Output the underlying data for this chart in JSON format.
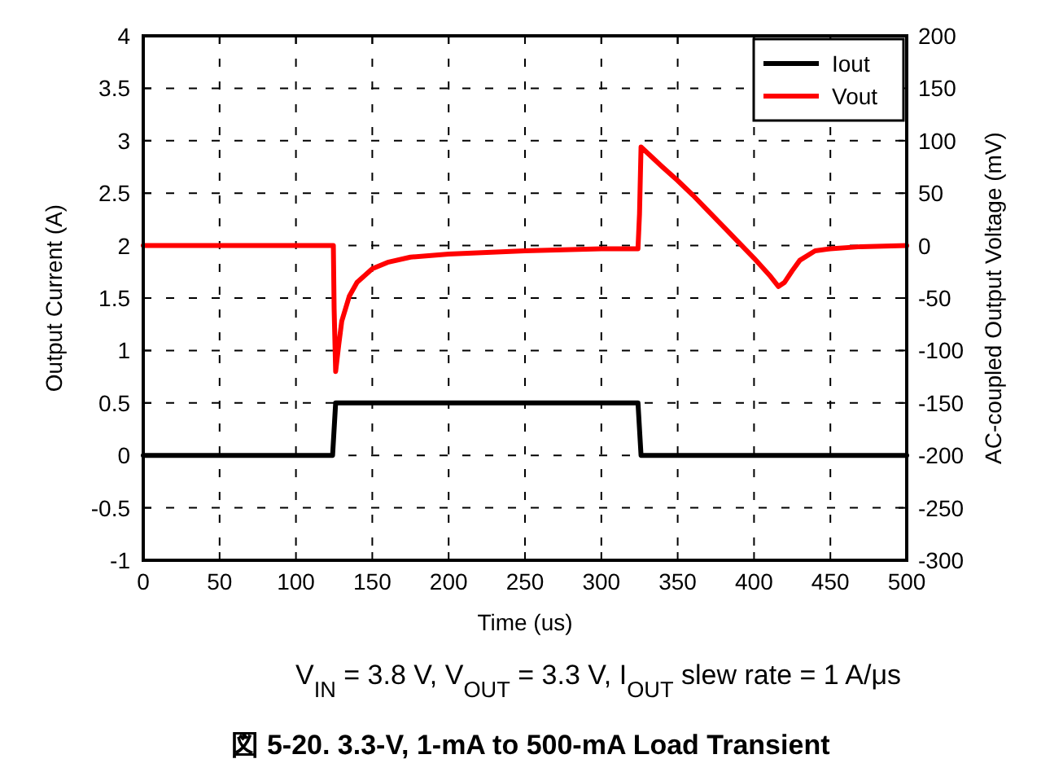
{
  "chart_data": {
    "type": "line",
    "title": "図 5-20. 3.3-V, 1-mA to 500-mA Load Transient",
    "subtitle": "V$_{IN}$ = 3.8 V, V$_{OUT}$ = 3.3 V, I$_{OUT}$ slew rate = 1 A/μs",
    "xlabel": "Time (us)",
    "ylabel": "Output Current (A)",
    "y2label": "AC-coupled Output Voltage (mV)",
    "xlim": [
      0,
      500
    ],
    "xticks": [
      0,
      50,
      100,
      150,
      200,
      250,
      300,
      350,
      400,
      450,
      500
    ],
    "ylim": [
      -1,
      4
    ],
    "yticks": [
      -1,
      -0.5,
      0,
      0.5,
      1,
      1.5,
      2,
      2.5,
      3,
      3.5,
      4
    ],
    "y2lim": [
      -300,
      200
    ],
    "y2ticks": [
      -300,
      -250,
      -200,
      -150,
      -100,
      -50,
      0,
      50,
      100,
      150,
      200
    ],
    "grid": true,
    "legend": "top right",
    "series": [
      {
        "name": "Iout",
        "color": "#000000",
        "x": [
          0,
          50,
          100,
          124,
          126,
          150,
          200,
          250,
          300,
          324,
          326,
          350,
          400,
          450,
          500
        ],
        "values": [
          0,
          0,
          0,
          0,
          0.5,
          0.5,
          0.5,
          0.5,
          0.5,
          0.5,
          0,
          0,
          0,
          0,
          0
        ]
      },
      {
        "name": "Vout",
        "color": "#ff0000",
        "axis": "y2",
        "x": [
          0,
          50,
          100,
          124.5,
          125,
          126,
          128,
          130,
          135,
          140,
          150,
          160,
          175,
          200,
          250,
          300,
          324,
          325,
          326,
          340,
          350,
          360,
          380,
          400,
          410,
          416,
          420,
          425,
          430,
          440,
          450,
          470,
          500
        ],
        "values": [
          0,
          0,
          0,
          0,
          -60,
          -120,
          -95,
          -72,
          -48,
          -35,
          -22,
          -16,
          -11,
          -8,
          -5,
          -3,
          -3,
          30,
          94,
          75,
          62,
          48,
          18,
          -12,
          -28,
          -39,
          -35,
          -24,
          -14,
          -5,
          -3,
          -1,
          0
        ]
      }
    ]
  }
}
